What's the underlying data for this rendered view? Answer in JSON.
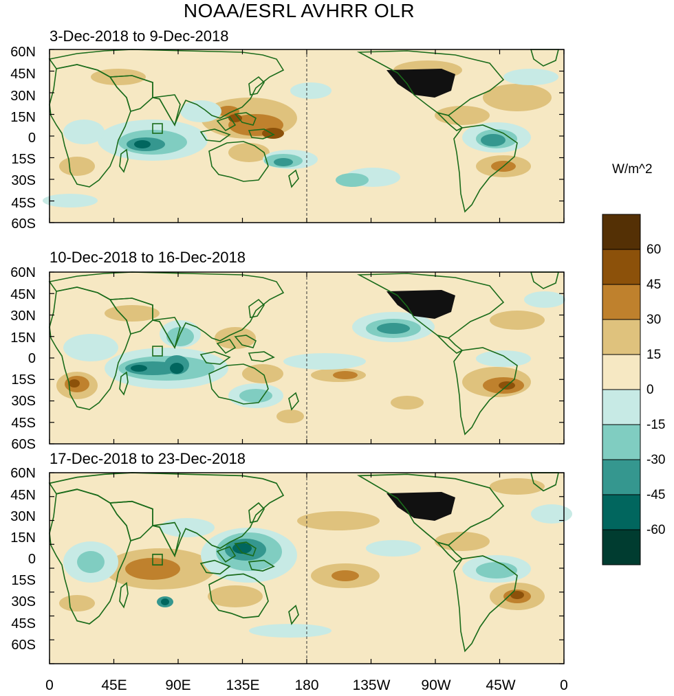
{
  "title": "NOAA/ESRL AVHRR OLR",
  "panels": [
    {
      "label": "3-Dec-2018 to 9-Dec-2018"
    },
    {
      "label": "10-Dec-2018 to 16-Dec-2018"
    },
    {
      "label": "17-Dec-2018 to 23-Dec-2018"
    }
  ],
  "lat_labels": [
    "60N",
    "45N",
    "30N",
    "15N",
    "0",
    "15S",
    "30S",
    "45S",
    "60S"
  ],
  "lon_labels": [
    "0",
    "45E",
    "90E",
    "135E",
    "180",
    "135W",
    "90W",
    "45W",
    "0"
  ],
  "colorbar": {
    "unit": "W/m^2",
    "tick_labels": [
      "60",
      "45",
      "30",
      "15",
      "0",
      "-15",
      "-30",
      "-45",
      "-60"
    ],
    "colors": [
      "#543005",
      "#8c510a",
      "#bf812d",
      "#dfc27d",
      "#f6e8c3",
      "#c7eae5",
      "#80cdc1",
      "#35978f",
      "#01665e",
      "#003c30"
    ]
  },
  "map_colors": {
    "coast": "#1a6b1a",
    "land_dense": "#111111",
    "background": "#f6e8c3"
  }
}
